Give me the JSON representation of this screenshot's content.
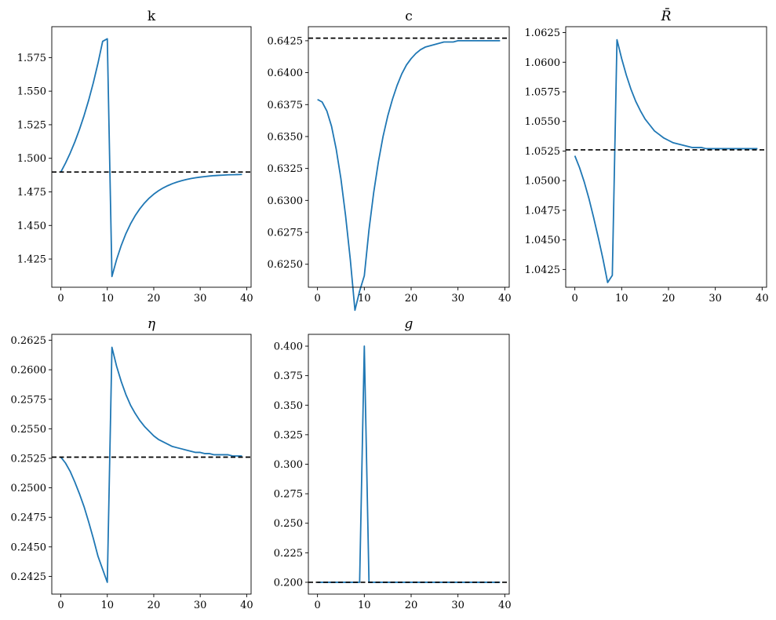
{
  "chart_data": [
    {
      "type": "line",
      "title": "k",
      "xlim": [
        -1.95,
        40.95
      ],
      "ylim": [
        1.404,
        1.598
      ],
      "xticks": [
        "0",
        "10",
        "20",
        "30",
        "40"
      ],
      "yticks": [
        "1.425",
        "1.450",
        "1.475",
        "1.500",
        "1.525",
        "1.550",
        "1.575"
      ],
      "x": [
        0,
        1,
        2,
        3,
        4,
        5,
        6,
        7,
        8,
        9,
        10,
        11,
        12,
        13,
        14,
        15,
        16,
        17,
        18,
        19,
        20,
        21,
        22,
        23,
        24,
        25,
        26,
        27,
        28,
        29,
        30,
        31,
        32,
        33,
        34,
        35,
        36,
        37,
        38,
        39
      ],
      "series": [
        {
          "values": [
            1.4898,
            1.4964,
            1.5038,
            1.5121,
            1.5214,
            1.5318,
            1.5434,
            1.5564,
            1.5709,
            1.5871,
            1.589,
            1.412,
            1.4246,
            1.4351,
            1.4439,
            1.4512,
            1.4573,
            1.4624,
            1.4667,
            1.4703,
            1.4733,
            1.4758,
            1.4779,
            1.4796,
            1.4811,
            1.4823,
            1.4833,
            1.4842,
            1.4849,
            1.4855,
            1.486,
            1.4864,
            1.4868,
            1.4871,
            1.4873,
            1.4875,
            1.4877,
            1.4878,
            1.4879,
            1.488
          ],
          "color": "#1f77b4"
        }
      ],
      "reference_line": {
        "y": 1.4898,
        "style": "dashed",
        "color": "#000000"
      }
    },
    {
      "type": "line",
      "title": "c",
      "xlim": [
        -1.95,
        40.95
      ],
      "ylim": [
        0.6232,
        0.6436
      ],
      "xticks": [
        "0",
        "10",
        "20",
        "30",
        "40"
      ],
      "yticks": [
        "0.6250",
        "0.6275",
        "0.6300",
        "0.6325",
        "0.6350",
        "0.6375",
        "0.6400",
        "0.6425"
      ],
      "x": [
        0,
        1,
        2,
        3,
        4,
        5,
        6,
        7,
        8,
        9,
        10,
        11,
        12,
        13,
        14,
        15,
        16,
        17,
        18,
        19,
        20,
        21,
        22,
        23,
        24,
        25,
        26,
        27,
        28,
        29,
        30,
        31,
        32,
        33,
        34,
        35,
        36,
        37,
        38,
        39
      ],
      "series": [
        {
          "values": [
            0.6379,
            0.6377,
            0.637,
            0.6358,
            0.634,
            0.6317,
            0.6288,
            0.6254,
            0.6214,
            0.6229,
            0.6241,
            0.6277,
            0.6306,
            0.633,
            0.635,
            0.6366,
            0.6379,
            0.639,
            0.6399,
            0.6406,
            0.6411,
            0.6415,
            0.6418,
            0.642,
            0.6421,
            0.6422,
            0.6423,
            0.6424,
            0.6424,
            0.6424,
            0.6425,
            0.6425,
            0.6425,
            0.6425,
            0.6425,
            0.6425,
            0.6425,
            0.6425,
            0.6425,
            0.6425
          ],
          "color": "#1f77b4"
        }
      ],
      "reference_line": {
        "y": 0.6427,
        "style": "dashed",
        "color": "#000000"
      }
    },
    {
      "type": "line",
      "title": "R̄",
      "xlim": [
        -1.95,
        40.95
      ],
      "ylim": [
        1.041,
        1.063
      ],
      "xticks": [
        "0",
        "10",
        "20",
        "30",
        "40"
      ],
      "yticks": [
        "1.0425",
        "1.0450",
        "1.0475",
        "1.0500",
        "1.0525",
        "1.0550",
        "1.0575",
        "1.0600",
        "1.0625"
      ],
      "x": [
        0,
        1,
        2,
        3,
        4,
        5,
        6,
        7,
        8,
        9,
        10,
        11,
        12,
        13,
        14,
        15,
        16,
        17,
        18,
        19,
        20,
        21,
        22,
        23,
        24,
        25,
        26,
        27,
        28,
        29,
        30,
        31,
        32,
        33,
        34,
        35,
        36,
        37,
        38,
        39
      ],
      "series": [
        {
          "values": [
            1.0521,
            1.0511,
            1.0499,
            1.0485,
            1.0469,
            1.0452,
            1.0434,
            1.0414,
            1.042,
            1.0619,
            1.0603,
            1.0589,
            1.0577,
            1.0567,
            1.0559,
            1.0552,
            1.0547,
            1.0542,
            1.0539,
            1.0536,
            1.0534,
            1.0532,
            1.0531,
            1.053,
            1.0529,
            1.0528,
            1.0528,
            1.0528,
            1.0527,
            1.0527,
            1.0527,
            1.0527,
            1.0527,
            1.0527,
            1.0527,
            1.0527,
            1.0527,
            1.0527,
            1.0527,
            1.0527
          ],
          "color": "#1f77b4"
        }
      ],
      "reference_line": {
        "y": 1.0526,
        "style": "dashed",
        "color": "#000000"
      }
    },
    {
      "type": "line",
      "title": "η",
      "xlim": [
        -1.95,
        40.95
      ],
      "ylim": [
        0.241,
        0.263
      ],
      "xticks": [
        "0",
        "10",
        "20",
        "30",
        "40"
      ],
      "yticks": [
        "0.2425",
        "0.2450",
        "0.2475",
        "0.2500",
        "0.2525",
        "0.2550",
        "0.2575",
        "0.2600",
        "0.2625"
      ],
      "x": [
        0,
        1,
        2,
        3,
        4,
        5,
        6,
        7,
        8,
        9,
        10,
        11,
        12,
        13,
        14,
        15,
        16,
        17,
        18,
        19,
        20,
        21,
        22,
        23,
        24,
        25,
        26,
        27,
        28,
        29,
        30,
        31,
        32,
        33,
        34,
        35,
        36,
        37,
        38,
        39
      ],
      "series": [
        {
          "values": [
            0.2526,
            0.2521,
            0.2514,
            0.2505,
            0.2495,
            0.2484,
            0.2471,
            0.2457,
            0.2442,
            0.2431,
            0.242,
            0.2619,
            0.2603,
            0.259,
            0.2579,
            0.257,
            0.2563,
            0.2557,
            0.2552,
            0.2548,
            0.2544,
            0.2541,
            0.2539,
            0.2537,
            0.2535,
            0.2534,
            0.2533,
            0.2532,
            0.2531,
            0.253,
            0.253,
            0.2529,
            0.2529,
            0.2528,
            0.2528,
            0.2528,
            0.2528,
            0.2527,
            0.2527,
            0.2527
          ],
          "color": "#1f77b4"
        }
      ],
      "reference_line": {
        "y": 0.2526,
        "style": "dashed",
        "color": "#000000"
      }
    },
    {
      "type": "line",
      "title": "g",
      "xlim": [
        -1.95,
        40.95
      ],
      "ylim": [
        0.19,
        0.41
      ],
      "xticks": [
        "0",
        "10",
        "20",
        "30",
        "40"
      ],
      "yticks": [
        "0.200",
        "0.225",
        "0.250",
        "0.275",
        "0.300",
        "0.325",
        "0.350",
        "0.375",
        "0.400"
      ],
      "x": [
        0,
        1,
        2,
        3,
        4,
        5,
        6,
        7,
        8,
        9,
        10,
        11,
        12,
        13,
        14,
        15,
        16,
        17,
        18,
        19,
        20,
        21,
        22,
        23,
        24,
        25,
        26,
        27,
        28,
        29,
        30,
        31,
        32,
        33,
        34,
        35,
        36,
        37,
        38,
        39
      ],
      "series": [
        {
          "values": [
            0.2,
            0.2,
            0.2,
            0.2,
            0.2,
            0.2,
            0.2,
            0.2,
            0.2,
            0.2,
            0.4,
            0.2,
            0.2,
            0.2,
            0.2,
            0.2,
            0.2,
            0.2,
            0.2,
            0.2,
            0.2,
            0.2,
            0.2,
            0.2,
            0.2,
            0.2,
            0.2,
            0.2,
            0.2,
            0.2,
            0.2,
            0.2,
            0.2,
            0.2,
            0.2,
            0.2,
            0.2,
            0.2,
            0.2,
            0.2
          ],
          "color": "#1f77b4"
        }
      ],
      "reference_line": {
        "y": 0.2,
        "style": "dashed",
        "color": "#000000"
      }
    }
  ]
}
